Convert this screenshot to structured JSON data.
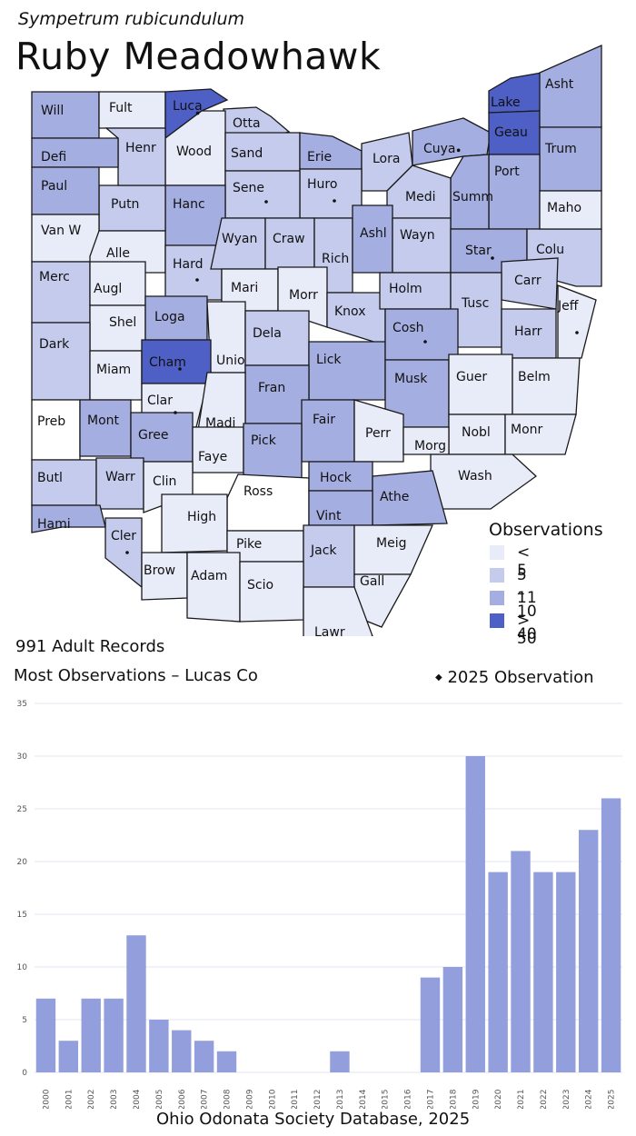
{
  "species": {
    "scientific_name": "Sympetrum rubicundulum",
    "common_name": "Ruby Meadowhawk"
  },
  "colors": {
    "lt5": "#e8ebf8",
    "c5_10": "#c4cbec",
    "c11_40": "#a5aee0",
    "gt50": "#4e5fc6",
    "zero": "#ffffff",
    "bar": "#929fdc",
    "grid": "#e3e6f3"
  },
  "legend": {
    "title": "Observations",
    "items": [
      {
        "label": "< 5",
        "color": "#e8ebf8"
      },
      {
        "label": "5 – 10",
        "color": "#c4cbec"
      },
      {
        "label": "11 – 40",
        "color": "#a5aee0"
      },
      {
        "label": "> 50",
        "color": "#4e5fc6"
      }
    ],
    "dot_label": "2025 Observation"
  },
  "summary": {
    "records": "991 Adult Records",
    "most": "Most Observations – Lucas Co"
  },
  "counties": [
    {
      "name": "Will",
      "cls": "c11_40"
    },
    {
      "name": "Fult",
      "cls": "lt5"
    },
    {
      "name": "Luca",
      "cls": "gt50",
      "dot": true
    },
    {
      "name": "Otta",
      "cls": "c5_10"
    },
    {
      "name": "Wood",
      "cls": "lt5"
    },
    {
      "name": "Sand",
      "cls": "c5_10"
    },
    {
      "name": "Erie",
      "cls": "c11_40"
    },
    {
      "name": "Lora",
      "cls": "c5_10"
    },
    {
      "name": "Cuya",
      "cls": "c11_40",
      "dot": true
    },
    {
      "name": "Lake",
      "cls": "gt50"
    },
    {
      "name": "Geau",
      "cls": "gt50"
    },
    {
      "name": "Asht",
      "cls": "c11_40"
    },
    {
      "name": "Trum",
      "cls": "c11_40"
    },
    {
      "name": "Port",
      "cls": "c11_40"
    },
    {
      "name": "Summ",
      "cls": "c11_40"
    },
    {
      "name": "Medi",
      "cls": "c5_10"
    },
    {
      "name": "Huro",
      "cls": "c5_10",
      "dot": true
    },
    {
      "name": "Sene",
      "cls": "c5_10",
      "dot": true
    },
    {
      "name": "Hanc",
      "cls": "c11_40"
    },
    {
      "name": "Putn",
      "cls": "c5_10"
    },
    {
      "name": "Henr",
      "cls": "c5_10"
    },
    {
      "name": "Defi",
      "cls": "c11_40"
    },
    {
      "name": "Paul",
      "cls": "c11_40"
    },
    {
      "name": "Van W",
      "cls": "lt5"
    },
    {
      "name": "Alle",
      "cls": "lt5"
    },
    {
      "name": "Hard",
      "cls": "c5_10",
      "dot": true
    },
    {
      "name": "Wyan",
      "cls": "c5_10"
    },
    {
      "name": "Craw",
      "cls": "c5_10"
    },
    {
      "name": "Rich",
      "cls": "c5_10"
    },
    {
      "name": "Ashl",
      "cls": "c11_40"
    },
    {
      "name": "Wayn",
      "cls": "c5_10"
    },
    {
      "name": "Star",
      "cls": "c11_40",
      "dot": true
    },
    {
      "name": "Colu",
      "cls": "c5_10"
    },
    {
      "name": "Maho",
      "cls": "lt5"
    },
    {
      "name": "Merc",
      "cls": "c5_10"
    },
    {
      "name": "Augl",
      "cls": "lt5"
    },
    {
      "name": "Mari",
      "cls": "lt5"
    },
    {
      "name": "Morr",
      "cls": "lt5"
    },
    {
      "name": "Knox",
      "cls": "c5_10"
    },
    {
      "name": "Holm",
      "cls": "c5_10"
    },
    {
      "name": "Carr",
      "cls": "c5_10"
    },
    {
      "name": "Tusc",
      "cls": "c5_10"
    },
    {
      "name": "Jeff",
      "cls": "lt5",
      "dot": true
    },
    {
      "name": "Harr",
      "cls": "c5_10"
    },
    {
      "name": "Shel",
      "cls": "lt5"
    },
    {
      "name": "Loga",
      "cls": "c11_40"
    },
    {
      "name": "Unio",
      "cls": "lt5"
    },
    {
      "name": "Dela",
      "cls": "c5_10"
    },
    {
      "name": "Lick",
      "cls": "c11_40"
    },
    {
      "name": "Cosh",
      "cls": "c11_40",
      "dot": true
    },
    {
      "name": "Dark",
      "cls": "c5_10"
    },
    {
      "name": "Miam",
      "cls": "lt5"
    },
    {
      "name": "Cham",
      "cls": "gt50",
      "dot": true
    },
    {
      "name": "Fran",
      "cls": "c11_40"
    },
    {
      "name": "Musk",
      "cls": "c11_40"
    },
    {
      "name": "Guer",
      "cls": "lt5"
    },
    {
      "name": "Belm",
      "cls": "lt5"
    },
    {
      "name": "Clar",
      "cls": "lt5",
      "dot": true
    },
    {
      "name": "Madi",
      "cls": "lt5"
    },
    {
      "name": "Fair",
      "cls": "c11_40"
    },
    {
      "name": "Perr",
      "cls": "lt5"
    },
    {
      "name": "Nobl",
      "cls": "lt5"
    },
    {
      "name": "Monr",
      "cls": "lt5"
    },
    {
      "name": "Preb",
      "cls": "zero"
    },
    {
      "name": "Mont",
      "cls": "c11_40"
    },
    {
      "name": "Gree",
      "cls": "c11_40"
    },
    {
      "name": "Faye",
      "cls": "lt5"
    },
    {
      "name": "Pick",
      "cls": "c11_40"
    },
    {
      "name": "Morg",
      "cls": "lt5"
    },
    {
      "name": "Wash",
      "cls": "lt5"
    },
    {
      "name": "Butl",
      "cls": "c5_10"
    },
    {
      "name": "Warr",
      "cls": "c5_10"
    },
    {
      "name": "Clin",
      "cls": "lt5"
    },
    {
      "name": "Ross",
      "cls": "zero"
    },
    {
      "name": "Hock",
      "cls": "c11_40"
    },
    {
      "name": "Athe",
      "cls": "c11_40"
    },
    {
      "name": "Hami",
      "cls": "c11_40"
    },
    {
      "name": "High",
      "cls": "lt5"
    },
    {
      "name": "Vint",
      "cls": "c11_40"
    },
    {
      "name": "Cler",
      "cls": "c5_10",
      "dot": true
    },
    {
      "name": "Pike",
      "cls": "lt5"
    },
    {
      "name": "Jack",
      "cls": "c5_10"
    },
    {
      "name": "Meig",
      "cls": "lt5"
    },
    {
      "name": "Brow",
      "cls": "lt5"
    },
    {
      "name": "Adam",
      "cls": "lt5"
    },
    {
      "name": "Scio",
      "cls": "lt5"
    },
    {
      "name": "Gall",
      "cls": "lt5"
    },
    {
      "name": "Lawr",
      "cls": "lt5"
    }
  ],
  "chart_data": {
    "type": "bar",
    "categories": [
      "2000",
      "2001",
      "2002",
      "2003",
      "2004",
      "2005",
      "2006",
      "2007",
      "2008",
      "2009",
      "2010",
      "2011",
      "2012",
      "2013",
      "2014",
      "2015",
      "2016",
      "2017",
      "2018",
      "2019",
      "2020",
      "2021",
      "2022",
      "2023",
      "2024",
      "2025"
    ],
    "values": [
      7,
      3,
      7,
      7,
      13,
      5,
      4,
      3,
      2,
      0,
      0,
      0,
      0,
      2,
      0,
      0,
      0,
      9,
      10,
      30,
      19,
      21,
      19,
      19,
      23,
      26
    ],
    "yticks": [
      0,
      5,
      10,
      15,
      20,
      25,
      30,
      35
    ],
    "ylim": [
      0,
      35
    ],
    "grid": true,
    "title": "",
    "xlabel": "",
    "ylabel": ""
  },
  "source": "Ohio Odonata Society Database, 2025"
}
